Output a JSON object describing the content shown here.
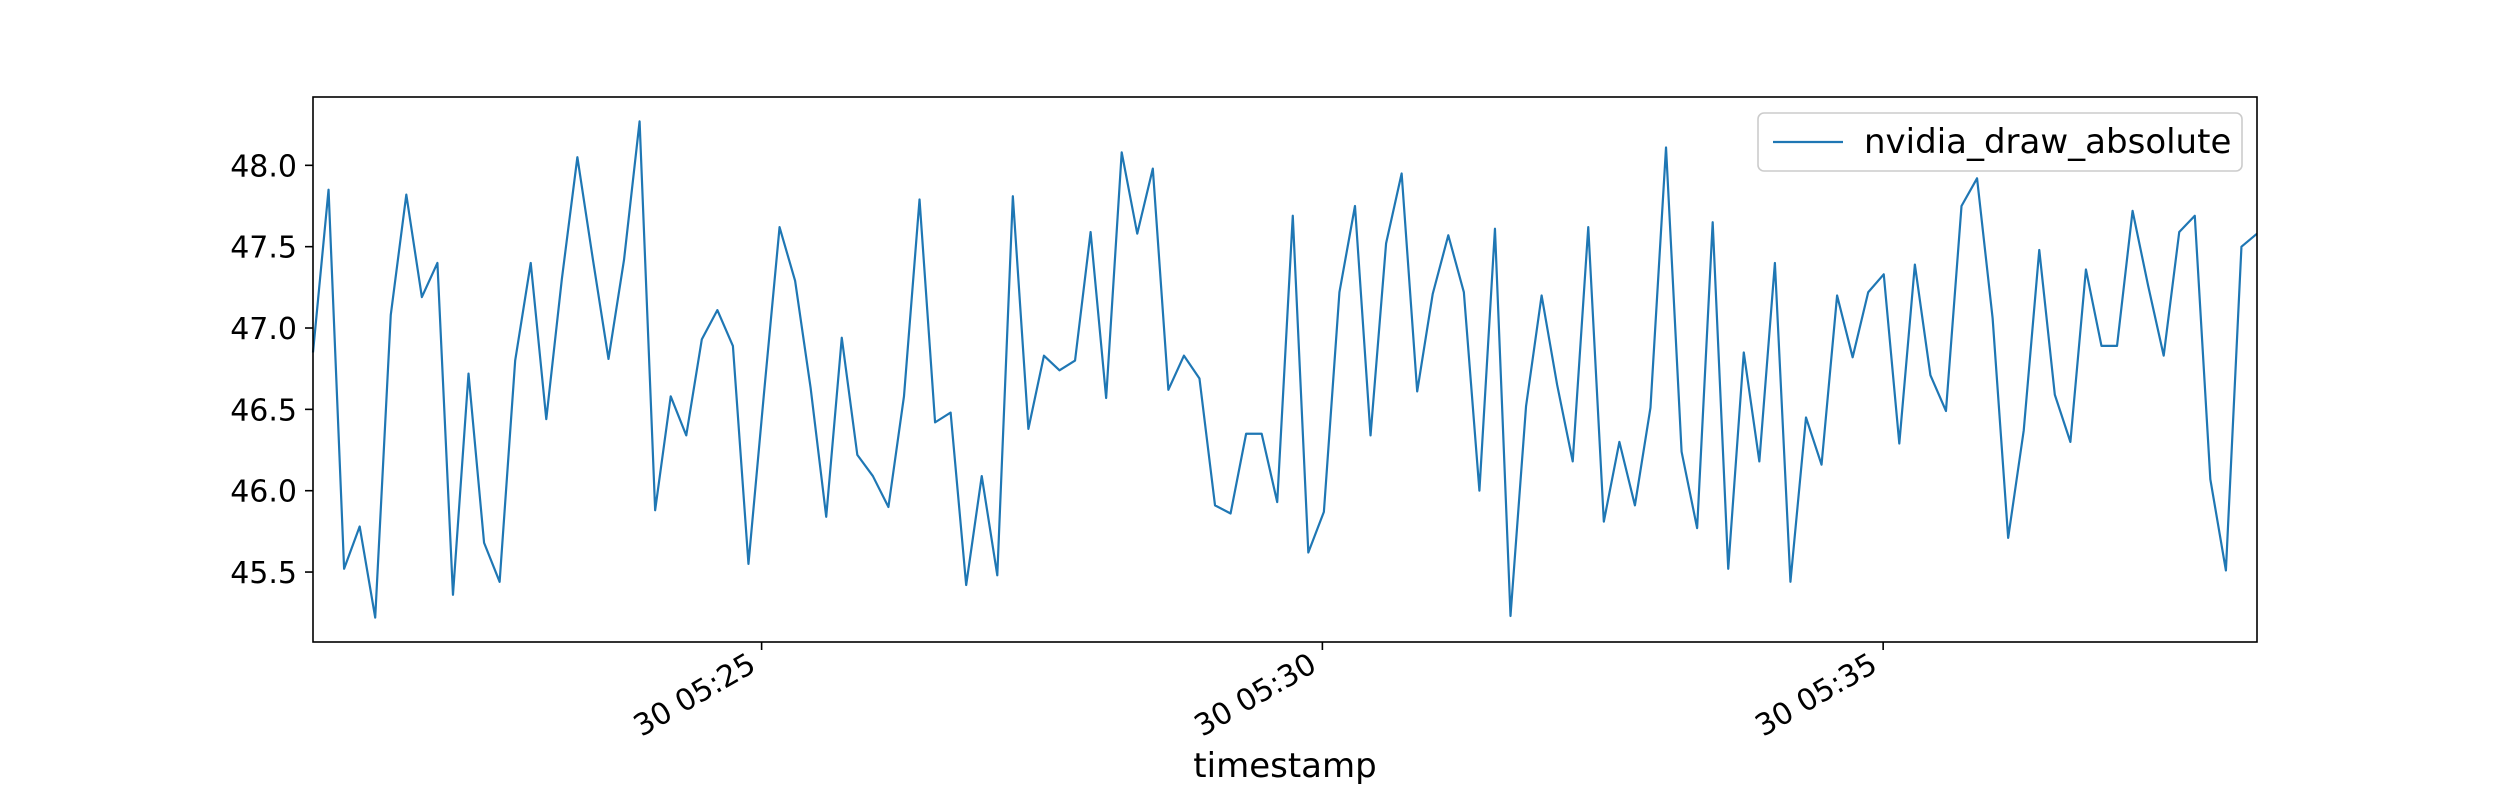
{
  "chart_data": {
    "type": "line",
    "title": "",
    "xlabel": "timestamp",
    "ylabel": "",
    "x_start": "30 05:21:00",
    "x_end": "30 05:38:20",
    "xlim": [
      "30 05:21:00",
      "30 05:38:20"
    ],
    "ylim": [
      45.07,
      48.42
    ],
    "x_ticks": [
      {
        "label": "30 05:25",
        "time": "30 05:25:00"
      },
      {
        "label": "30 05:30",
        "time": "30 05:30:00"
      },
      {
        "label": "30 05:35",
        "time": "30 05:35:00"
      }
    ],
    "y_ticks": [
      "45.5",
      "46.0",
      "46.5",
      "47.0",
      "47.5",
      "48.0"
    ],
    "grid": false,
    "legend": {
      "position": "top-right"
    },
    "series": [
      {
        "name": "nvidia_draw_absolute",
        "color": "#1f77b4",
        "values": [
          46.85,
          47.85,
          45.52,
          45.78,
          45.22,
          47.08,
          47.82,
          47.19,
          47.4,
          45.36,
          46.72,
          45.68,
          45.44,
          46.8,
          47.4,
          46.44,
          47.3,
          48.05,
          47.42,
          46.81,
          47.42,
          48.27,
          45.88,
          46.58,
          46.34,
          46.93,
          47.11,
          46.89,
          45.55,
          46.6,
          47.62,
          47.29,
          46.63,
          45.84,
          46.94,
          46.22,
          46.09,
          45.9,
          46.58,
          47.79,
          46.42,
          46.48,
          45.42,
          46.09,
          45.48,
          47.81,
          46.38,
          46.83,
          46.74,
          46.8,
          47.59,
          46.57,
          48.08,
          47.58,
          47.98,
          46.62,
          46.83,
          46.69,
          45.91,
          45.86,
          46.35,
          46.35,
          45.93,
          47.69,
          45.62,
          45.87,
          47.22,
          47.75,
          46.34,
          47.52,
          47.95,
          46.61,
          47.21,
          47.57,
          47.22,
          46.0,
          47.61,
          45.23,
          46.52,
          47.2,
          46.65,
          46.18,
          47.62,
          45.81,
          46.3,
          45.91,
          46.51,
          48.11,
          46.24,
          45.77,
          47.65,
          45.52,
          46.85,
          46.18,
          47.4,
          45.44,
          46.45,
          46.16,
          47.2,
          46.82,
          47.22,
          47.33,
          46.29,
          47.39,
          46.71,
          46.49,
          47.75,
          47.92,
          47.06,
          45.71,
          46.37,
          47.48,
          46.59,
          46.3,
          47.36,
          46.89,
          46.89,
          47.72,
          47.26,
          46.83,
          47.59,
          47.69,
          46.07,
          45.51,
          47.5,
          47.58
        ]
      }
    ]
  }
}
